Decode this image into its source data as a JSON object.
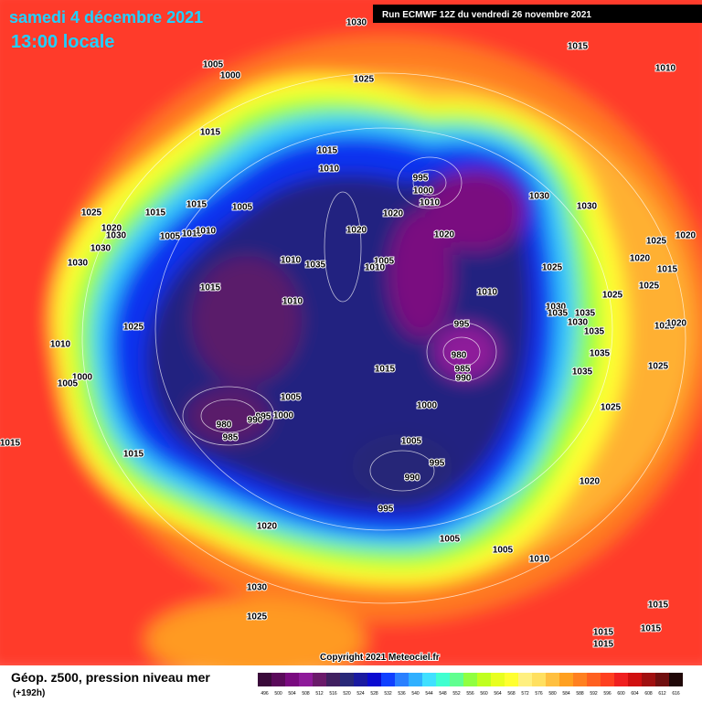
{
  "header": {
    "date": "samedi 4 décembre 2021",
    "time": "13:00 locale",
    "run": "Run ECMWF 12Z du vendredi 26 novembre 2021"
  },
  "footer": {
    "title": "Géop. z500, pression niveau mer",
    "lead": "(+192h)",
    "copyright": "Copyright 2021 Meteociel.fr"
  },
  "colorbar": {
    "labels": [
      496,
      500,
      504,
      508,
      512,
      516,
      520,
      524,
      528,
      532,
      536,
      540,
      544,
      548,
      552,
      556,
      560,
      564,
      568,
      572,
      576,
      580,
      584,
      588,
      592,
      596,
      600,
      604,
      608,
      612,
      616
    ],
    "colors": [
      "#3a0a3a",
      "#5a0a5a",
      "#7a0a80",
      "#8e1a9a",
      "#6a1a6a",
      "#402060",
      "#282878",
      "#1a1aa0",
      "#0a0ad0",
      "#1040ff",
      "#2a80ff",
      "#30b0ff",
      "#40e0ff",
      "#40ffd0",
      "#60ff90",
      "#90ff40",
      "#c0ff20",
      "#e8ff20",
      "#ffff30",
      "#fff080",
      "#ffe060",
      "#ffc040",
      "#ffa020",
      "#ff8020",
      "#ff6020",
      "#ff4020",
      "#f02020",
      "#d01010",
      "#a01010",
      "#701010",
      "#200808"
    ]
  },
  "isobar_labels": [
    1030,
    1015,
    1010,
    1005,
    1000,
    1025,
    1015,
    1015,
    1010,
    995,
    1000,
    1010,
    1030,
    1030,
    1005,
    1015,
    1025,
    1020,
    1030,
    1015,
    1005,
    1010,
    1010,
    1020,
    1020,
    1020,
    1025,
    1020,
    1030,
    1030,
    1020,
    1015,
    1010,
    1035,
    1005,
    1010,
    1025,
    1015,
    1010,
    1010,
    1025,
    1025,
    1030,
    1035,
    1035,
    1030,
    1025,
    995,
    1025,
    1020,
    1035,
    1010,
    980,
    985,
    990,
    1035,
    1015,
    1035,
    1025,
    1000,
    1005,
    1005,
    1000,
    1000,
    995,
    990,
    980,
    985,
    1025,
    1015,
    1005,
    1015,
    995,
    990,
    1020,
    995,
    1020,
    1005,
    1005,
    1010,
    1030,
    1015,
    1025,
    1015,
    1015,
    1015
  ]
}
